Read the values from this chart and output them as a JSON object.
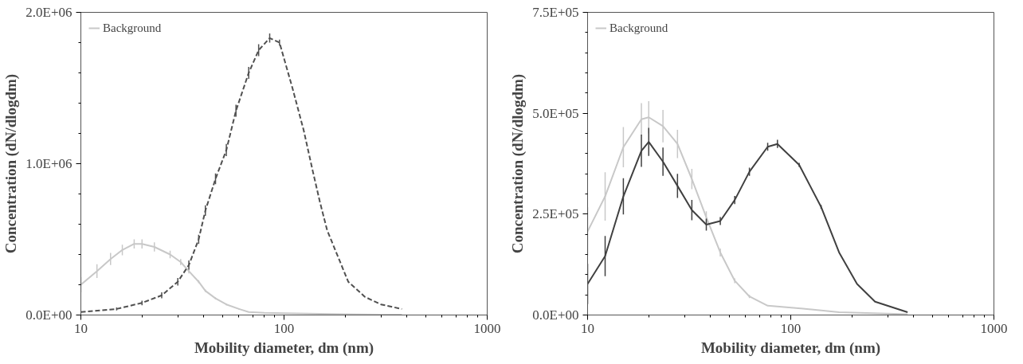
{
  "chart_data": [
    {
      "type": "line",
      "xlabel": "Mobility diameter, dm (nm)",
      "ylabel": "Concentration (dN/dlogdm)",
      "log": "x",
      "xlim": [
        10,
        1000
      ],
      "xticks": [
        10,
        100,
        1000
      ],
      "ylim": [
        0,
        2000000
      ],
      "yticks": [
        {
          "value": 0,
          "label": "0.0E+00"
        },
        {
          "value": 1000000,
          "label": "1.0E+06"
        },
        {
          "value": 2000000,
          "label": "2.0E+06"
        }
      ],
      "legend": "top left",
      "grid": false,
      "marker": "none",
      "series": [
        {
          "name": "Background",
          "color": "#c8c8c8",
          "line_style": "solid",
          "x": [
            10,
            12,
            14,
            16,
            18.3,
            20,
            23,
            27.5,
            31,
            34,
            38,
            41,
            46,
            52,
            60,
            67,
            80,
            100,
            150,
            200,
            300,
            380
          ],
          "values": [
            200000,
            290000,
            370000,
            430000,
            470000,
            470000,
            450000,
            400000,
            350000,
            290000,
            220000,
            160000,
            110000,
            70000,
            40000,
            20000,
            15000,
            12000,
            8000,
            5000,
            3000,
            2000
          ],
          "errors": [
            50000,
            45000,
            40000,
            35000,
            30000,
            30000,
            30000,
            25000,
            20000,
            15000,
            10000,
            8000,
            6000,
            5000,
            4000,
            null,
            null,
            null,
            null,
            null,
            null,
            null
          ]
        },
        {
          "color": "#505050",
          "line_style": "dashed",
          "x": [
            10,
            15,
            20,
            25,
            30,
            34,
            38,
            41,
            46,
            52,
            58,
            67,
            75,
            85,
            95,
            110,
            125,
            138,
            150,
            163,
            185,
            207,
            250,
            300,
            380
          ],
          "values": [
            20000,
            40000,
            80000,
            130000,
            220000,
            330000,
            500000,
            690000,
            900000,
            1090000,
            1350000,
            1600000,
            1750000,
            1830000,
            1800000,
            1500000,
            1220000,
            960000,
            750000,
            560000,
            380000,
            220000,
            120000,
            70000,
            40000
          ],
          "errors": [
            null,
            10000,
            15000,
            20000,
            25000,
            30000,
            30000,
            35000,
            35000,
            40000,
            40000,
            40000,
            40000,
            30000,
            20000,
            null,
            null,
            null,
            null,
            null,
            null,
            null,
            null,
            null,
            null
          ]
        }
      ]
    },
    {
      "type": "line",
      "xlabel": "Mobility diameter, dm (nm)",
      "ylabel": "Concentration (dN/dlogdm)",
      "log": "x",
      "xlim": [
        10,
        1000
      ],
      "xticks": [
        10,
        100,
        1000
      ],
      "ylim": [
        0,
        750000
      ],
      "yticks": [
        {
          "value": 0,
          "label": "0.0E+00"
        },
        {
          "value": 250000,
          "label": "2.5E+05"
        },
        {
          "value": 500000,
          "label": "5.0E+05"
        },
        {
          "value": 750000,
          "label": "7.5E+05"
        }
      ],
      "legend": "top left",
      "grid": false,
      "marker": "none",
      "series": [
        {
          "name": "Background",
          "color": "#c8c8c8",
          "line_style": "solid",
          "x": [
            10,
            12.2,
            15,
            18.4,
            20,
            23.5,
            27.7,
            32.6,
            38.4,
            45,
            53,
            62.6,
            77,
            115,
            173,
            376
          ],
          "values": [
            207000,
            294000,
            416000,
            485000,
            490000,
            468000,
            424000,
            337000,
            242000,
            155000,
            85000,
            46000,
            23000,
            16000,
            7000,
            2000
          ],
          "errors": [
            60000,
            60000,
            50000,
            40000,
            40000,
            40000,
            35000,
            25000,
            15000,
            10000,
            6000,
            4000,
            null,
            null,
            null,
            null
          ]
        },
        {
          "color": "#404040",
          "line_style": "solid",
          "x": [
            10,
            12.2,
            15,
            18.4,
            20,
            23.5,
            27.7,
            32.6,
            38.4,
            45,
            53,
            62.6,
            77,
            86,
            110,
            141,
            173,
            212,
            260,
            376
          ],
          "values": [
            77000,
            146000,
            294000,
            407000,
            429000,
            380000,
            320000,
            260000,
            224000,
            233000,
            285000,
            355000,
            417000,
            424000,
            372000,
            268000,
            155000,
            77000,
            33000,
            7000
          ],
          "errors": [
            50000,
            50000,
            45000,
            40000,
            35000,
            35000,
            30000,
            25000,
            15000,
            10000,
            10000,
            10000,
            10000,
            10000,
            5000,
            5000,
            null,
            null,
            null,
            null
          ]
        }
      ]
    }
  ]
}
